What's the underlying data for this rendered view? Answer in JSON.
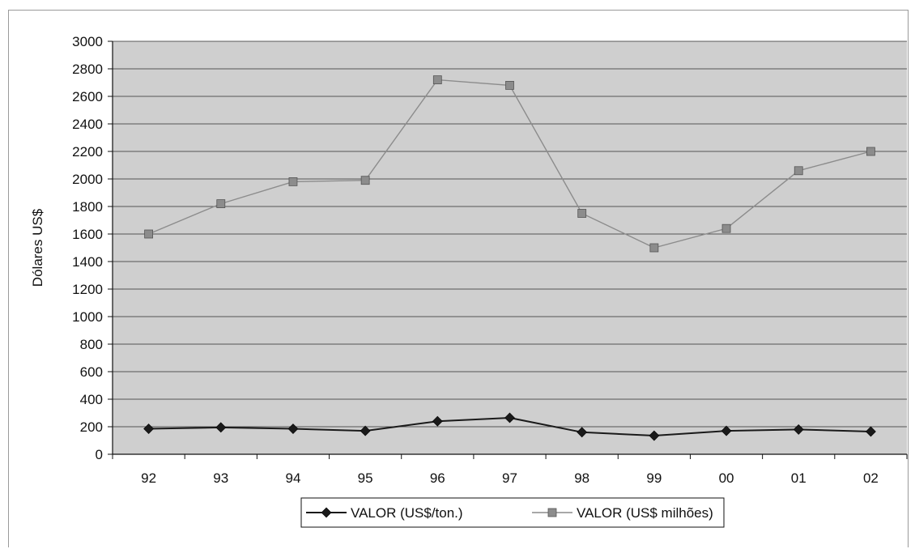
{
  "chart_data": {
    "type": "line",
    "title": "",
    "xlabel": "",
    "ylabel": "Dólares US$",
    "categories": [
      "92",
      "93",
      "94",
      "95",
      "96",
      "97",
      "98",
      "99",
      "00",
      "01",
      "02"
    ],
    "ylim": [
      0,
      3000
    ],
    "yticks": [
      0,
      200,
      400,
      600,
      800,
      1000,
      1200,
      1400,
      1600,
      1800,
      2000,
      2200,
      2400,
      2600,
      2800,
      3000
    ],
    "grid": true,
    "legend": "bottom",
    "series": [
      {
        "name": "VALOR (US$/ton.)",
        "marker": "diamond",
        "color": "#1a1a1a",
        "values": [
          185,
          195,
          185,
          170,
          240,
          265,
          160,
          135,
          170,
          180,
          165
        ]
      },
      {
        "name": "VALOR (US$ milhões)",
        "marker": "square",
        "color": "#8c8c8c",
        "values": [
          1600,
          1820,
          1980,
          1990,
          2720,
          2680,
          1750,
          1500,
          1640,
          2060,
          2200
        ]
      }
    ],
    "plot_background": "#cfcfcf"
  }
}
